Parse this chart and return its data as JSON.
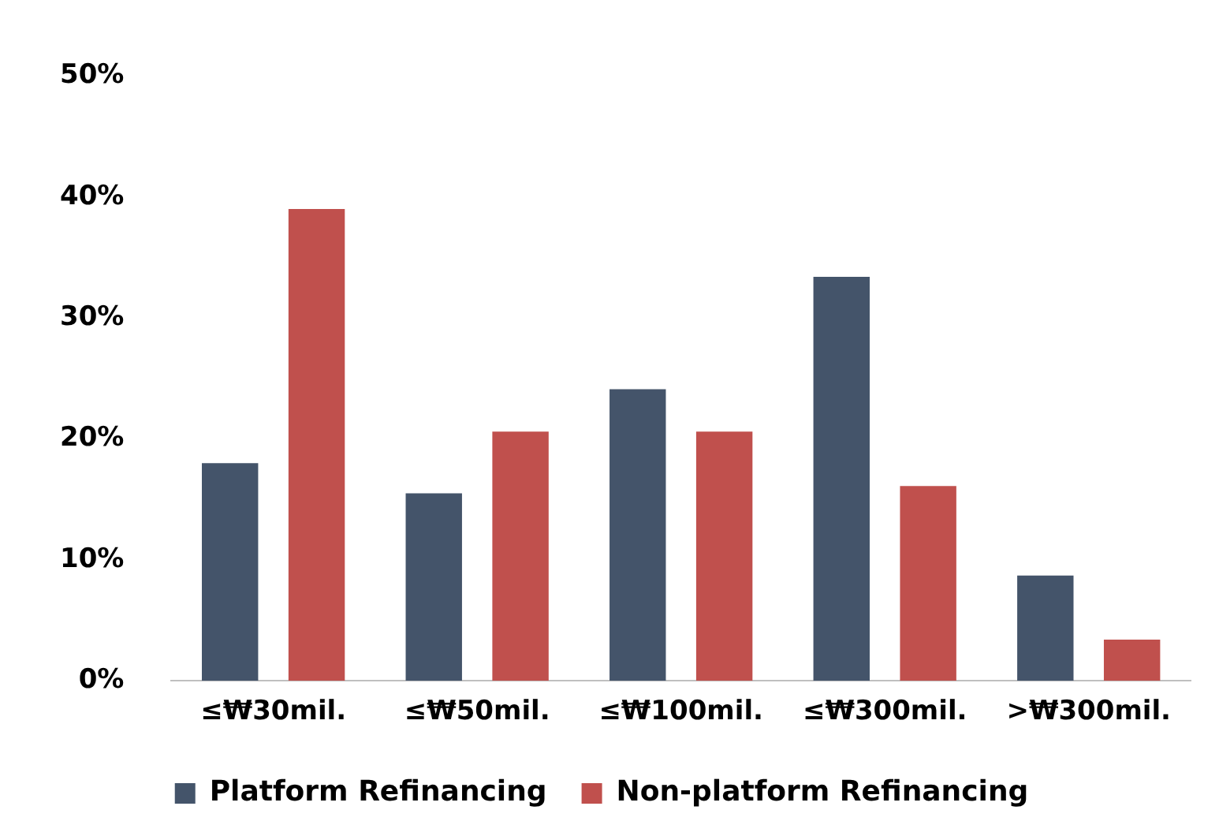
{
  "chart_data": {
    "type": "bar",
    "categories": [
      "≤₩30mil.",
      "≤₩50mil.",
      "≤₩100mil.",
      "≤₩300mil.",
      ">₩300mil."
    ],
    "series": [
      {
        "name": "Platform Refinancing",
        "color": "#44546a",
        "values": [
          18,
          15.5,
          24.1,
          33.4,
          8.7
        ]
      },
      {
        "name": "Non-platform Refinancing",
        "color": "#c0504d",
        "values": [
          39,
          20.6,
          20.6,
          16.1,
          3.4
        ]
      }
    ],
    "ylim": [
      0,
      50
    ],
    "yticks": [
      {
        "value": 0,
        "label": "0%"
      },
      {
        "value": 10,
        "label": "10%"
      },
      {
        "value": 20,
        "label": "20%"
      },
      {
        "value": 30,
        "label": "30%"
      },
      {
        "value": 40,
        "label": "40%"
      },
      {
        "value": 50,
        "label": "50%"
      }
    ],
    "grid": false,
    "legend": "bottom"
  }
}
